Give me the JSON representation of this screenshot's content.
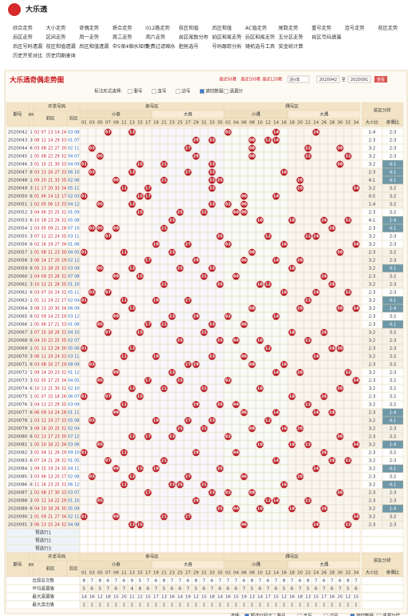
{
  "site_title": "大乐透",
  "nav": [
    [
      "综合走势",
      "大小走势",
      "奇偶走势",
      "质合走势",
      "012路走势",
      "前区和值",
      "后区和值",
      "AC值走势",
      "尾数走势",
      "重号走势",
      "连号走势",
      "前区走势"
    ],
    [
      "后区走势",
      "区间走势",
      "周一走势",
      "周三走势",
      "周六走势",
      "前区尾数分布",
      "前区和尾走势",
      "后区和尾走势",
      "五分区走势",
      "前区号码遗漏"
    ],
    [
      "后区号码遗漏",
      "前区和值遗漏",
      "后区和值遗漏",
      "中5保4缩水矩阵",
      "免费过滤缩水",
      "胆拖选号",
      "号码跟踪分析",
      "随机选号工具",
      "奖金统计算"
    ],
    [
      "历史开奖对比",
      "历史同期查询"
    ]
  ],
  "chart_title": "大乐透奇偶走势图",
  "period_options": [
    "最近50期",
    "最近100期",
    "最近120期"
  ],
  "select_text": "近n年",
  "range_from": "2020042",
  "to_label": "至",
  "range_to": "2020091",
  "button": "查看",
  "mark_label": "标注形式选择:",
  "mark_options": [
    "重号",
    "连号",
    "边号",
    "遮挡数据",
    "遗漏分"
  ],
  "mark_checked": [
    false,
    false,
    false,
    true,
    false
  ],
  "table": {
    "issue_header": "期号",
    "week_header": "星期",
    "draw_header": "开奖号码",
    "front_header": "前区",
    "back_header": "后区",
    "zones": [
      "奇号区",
      "偶号区"
    ],
    "subzones": [
      "小奇",
      "大奇",
      "小偶",
      "大偶"
    ],
    "columns": [
      "01",
      "03",
      "05",
      "07",
      "09",
      "11",
      "13",
      "15",
      "17",
      "19",
      "21",
      "23",
      "25",
      "27",
      "29",
      "31",
      "33",
      "35",
      "02",
      "04",
      "06",
      "08",
      "10",
      "12",
      "14",
      "16",
      "18",
      "20",
      "22",
      "24",
      "26",
      "28",
      "30",
      "32",
      "34"
    ],
    "analysis_header": "前区分析",
    "analysis_cols": [
      "大小比",
      "奇偶比"
    ],
    "rows": [
      {
        "issue": "2020042",
        "week": "1",
        "front": [
          "02",
          "07",
          "13",
          "14",
          "24"
        ],
        "back": [
          "03",
          "08"
        ],
        "big_small": "1:4",
        "odd_even": "2:3"
      },
      {
        "issue": "2020043",
        "week": "3",
        "front": [
          "08",
          "12",
          "14",
          "29",
          "33"
        ],
        "back": [
          "01",
          "07"
        ],
        "big_small": "2:3",
        "odd_even": "2:3"
      },
      {
        "issue": "2020044",
        "week": "6",
        "front": [
          "03",
          "08",
          "22",
          "27",
          "30"
        ],
        "back": [
          "02",
          "11"
        ],
        "big_small": "3:2",
        "odd_even": "2:3"
      },
      {
        "issue": "2020045",
        "week": "1",
        "front": [
          "05",
          "08",
          "22",
          "29",
          "32"
        ],
        "back": [
          "04",
          "07"
        ],
        "big_small": "3:2",
        "odd_even": "2:3"
      },
      {
        "issue": "2020046",
        "week": "3",
        "front": [
          "01",
          "15",
          "21",
          "30",
          "33"
        ],
        "back": [
          "04",
          "09"
        ],
        "big_small": "3:2",
        "odd_even": "4:1"
      },
      {
        "issue": "2020047",
        "week": "6",
        "front": [
          "03",
          "13",
          "16",
          "27",
          "33"
        ],
        "back": [
          "06",
          "10"
        ],
        "big_small": "2:3",
        "odd_even": "4:1"
      },
      {
        "issue": "2020048",
        "week": "1",
        "front": [
          "09",
          "20",
          "21",
          "33",
          "35"
        ],
        "back": [
          "02",
          "06"
        ],
        "big_small": "4:1",
        "odd_even": "4:1"
      },
      {
        "issue": "2020049",
        "week": "3",
        "front": [
          "11",
          "17",
          "20",
          "33",
          "34"
        ],
        "back": [
          "05",
          "11"
        ],
        "big_small": "3:2",
        "odd_even": "3:2"
      },
      {
        "issue": "2020050",
        "week": "6",
        "front": [
          "01",
          "06",
          "14",
          "15",
          "17"
        ],
        "back": [
          "02",
          "03"
        ],
        "big_small": "0:5",
        "odd_even": "3:2"
      },
      {
        "issue": "2020051",
        "week": "1",
        "front": [
          "02",
          "05",
          "06",
          "13",
          "33"
        ],
        "back": [
          "04",
          "12"
        ],
        "big_small": "1:4",
        "odd_even": "3:2"
      },
      {
        "issue": "2020052",
        "week": "3",
        "front": [
          "04",
          "06",
          "15",
          "25",
          "31"
        ],
        "back": [
          "01",
          "09"
        ],
        "big_small": "2:3",
        "odd_even": "3:2"
      },
      {
        "issue": "2020053",
        "week": "6",
        "front": [
          "10",
          "18",
          "23",
          "26",
          "32"
        ],
        "back": [
          "05",
          "08"
        ],
        "big_small": "4:1",
        "odd_even": "1:4"
      },
      {
        "issue": "2020054",
        "week": "1",
        "front": [
          "03",
          "05",
          "09",
          "21",
          "28"
        ],
        "back": [
          "07",
          "10"
        ],
        "big_small": "2:3",
        "odd_even": "4:1"
      },
      {
        "issue": "2020055",
        "week": "3",
        "front": [
          "07",
          "12",
          "22",
          "24",
          "35"
        ],
        "back": [
          "03",
          "11"
        ],
        "big_small": "3:2",
        "odd_even": "2:3"
      },
      {
        "issue": "2020056",
        "week": "6",
        "front": [
          "02",
          "16",
          "19",
          "27",
          "34"
        ],
        "back": [
          "01",
          "06"
        ],
        "big_small": "3:2",
        "odd_even": "2:3"
      },
      {
        "issue": "2020057",
        "week": "1",
        "front": [
          "01",
          "08",
          "11",
          "23",
          "30"
        ],
        "back": [
          "04",
          "05"
        ],
        "big_small": "2:3",
        "odd_even": "3:2"
      },
      {
        "issue": "2020058",
        "week": "3",
        "front": [
          "06",
          "14",
          "17",
          "20",
          "29"
        ],
        "back": [
          "02",
          "12"
        ],
        "big_small": "3:2",
        "odd_even": "2:3"
      },
      {
        "issue": "2020059",
        "week": "6",
        "front": [
          "05",
          "13",
          "18",
          "25",
          "33"
        ],
        "back": [
          "03",
          "09"
        ],
        "big_small": "3:2",
        "odd_even": "4:1"
      },
      {
        "issue": "2020060",
        "week": "1",
        "front": [
          "04",
          "09",
          "15",
          "26",
          "31"
        ],
        "back": [
          "07",
          "08"
        ],
        "big_small": "2:3",
        "odd_even": "3:2"
      },
      {
        "issue": "2020061",
        "week": "3",
        "front": [
          "10",
          "12",
          "21",
          "28",
          "35"
        ],
        "back": [
          "01",
          "10"
        ],
        "big_small": "3:2",
        "odd_even": "2:3"
      },
      {
        "issue": "2020062",
        "week": "6",
        "front": [
          "03",
          "07",
          "16",
          "24",
          "32"
        ],
        "back": [
          "05",
          "11"
        ],
        "big_small": "2:3",
        "odd_even": "2:3"
      },
      {
        "issue": "2020063",
        "week": "1",
        "front": [
          "01",
          "11",
          "19",
          "22",
          "27"
        ],
        "back": [
          "02",
          "04"
        ],
        "big_small": "3:2",
        "odd_even": "4:1"
      },
      {
        "issue": "2020064",
        "week": "3",
        "front": [
          "08",
          "13",
          "20",
          "30",
          "34"
        ],
        "back": [
          "06",
          "09"
        ],
        "big_small": "3:2",
        "odd_even": "1:4"
      },
      {
        "issue": "2020065",
        "week": "6",
        "front": [
          "02",
          "09",
          "14",
          "23",
          "29"
        ],
        "back": [
          "03",
          "12"
        ],
        "big_small": "2:3",
        "odd_even": "3:2"
      },
      {
        "issue": "2020066",
        "week": "1",
        "front": [
          "05",
          "06",
          "17",
          "21",
          "33"
        ],
        "back": [
          "01",
          "08"
        ],
        "big_small": "2:3",
        "odd_even": "4:1"
      },
      {
        "issue": "2020067",
        "week": "3",
        "front": [
          "07",
          "15",
          "18",
          "26",
          "31"
        ],
        "back": [
          "04",
          "10"
        ],
        "big_small": "3:2",
        "odd_even": "3:2"
      },
      {
        "issue": "2020068",
        "week": "6",
        "front": [
          "04",
          "10",
          "22",
          "25",
          "35"
        ],
        "back": [
          "02",
          "07"
        ],
        "big_small": "3:2",
        "odd_even": "2:3"
      },
      {
        "issue": "2020069",
        "week": "1",
        "front": [
          "01",
          "12",
          "13",
          "28",
          "30"
        ],
        "back": [
          "05",
          "06"
        ],
        "big_small": "2:3",
        "odd_even": "2:3"
      },
      {
        "issue": "2020070",
        "week": "3",
        "front": [
          "06",
          "11",
          "19",
          "24",
          "33"
        ],
        "back": [
          "03",
          "11"
        ],
        "big_small": "3:2",
        "odd_even": "3:2"
      },
      {
        "issue": "2020071",
        "week": "6",
        "front": [
          "03",
          "08",
          "16",
          "27",
          "29"
        ],
        "back": [
          "08",
          "09"
        ],
        "big_small": "2:3",
        "odd_even": "3:2"
      },
      {
        "issue": "2020072",
        "week": "1",
        "front": [
          "09",
          "14",
          "20",
          "23",
          "32"
        ],
        "back": [
          "01",
          "12"
        ],
        "big_small": "3:2",
        "odd_even": "2:3"
      },
      {
        "issue": "2020073",
        "week": "3",
        "front": [
          "02",
          "05",
          "17",
          "25",
          "34"
        ],
        "back": [
          "04",
          "05"
        ],
        "big_small": "2:3",
        "odd_even": "3:2"
      },
      {
        "issue": "2020074",
        "week": "6",
        "front": [
          "10",
          "13",
          "21",
          "30",
          "31"
        ],
        "back": [
          "02",
          "10"
        ],
        "big_small": "3:2",
        "odd_even": "3:2"
      },
      {
        "issue": "2020075",
        "week": "1",
        "front": [
          "01",
          "07",
          "15",
          "18",
          "26"
        ],
        "back": [
          "06",
          "07"
        ],
        "big_small": "2:3",
        "odd_even": "3:2"
      },
      {
        "issue": "2020076",
        "week": "3",
        "front": [
          "04",
          "11",
          "22",
          "29",
          "35"
        ],
        "back": [
          "03",
          "09"
        ],
        "big_small": "3:2",
        "odd_even": "3:2"
      },
      {
        "issue": "2020077",
        "week": "6",
        "front": [
          "06",
          "09",
          "14",
          "24",
          "28"
        ],
        "back": [
          "01",
          "11"
        ],
        "big_small": "2:3",
        "odd_even": "1:4"
      },
      {
        "issue": "2020078",
        "week": "1",
        "front": [
          "03",
          "12",
          "19",
          "27",
          "33"
        ],
        "back": [
          "05",
          "08"
        ],
        "big_small": "3:2",
        "odd_even": "4:1"
      },
      {
        "issue": "2020079",
        "week": "3",
        "front": [
          "08",
          "16",
          "20",
          "25",
          "31"
        ],
        "back": [
          "02",
          "04"
        ],
        "big_small": "3:2",
        "odd_even": "2:3"
      },
      {
        "issue": "2020080",
        "week": "6",
        "front": [
          "02",
          "13",
          "17",
          "23",
          "30"
        ],
        "back": [
          "07",
          "12"
        ],
        "big_small": "2:3",
        "odd_even": "3:2"
      },
      {
        "issue": "2020081",
        "week": "1",
        "front": [
          "05",
          "10",
          "18",
          "22",
          "34"
        ],
        "back": [
          "03",
          "06"
        ],
        "big_small": "3:2",
        "odd_even": "1:4"
      },
      {
        "issue": "2020082",
        "week": "3",
        "front": [
          "01",
          "04",
          "11",
          "26",
          "29"
        ],
        "back": [
          "09",
          "10"
        ],
        "big_small": "2:3",
        "odd_even": "3:2"
      },
      {
        "issue": "2020083",
        "week": "6",
        "front": [
          "07",
          "14",
          "21",
          "28",
          "32"
        ],
        "back": [
          "01",
          "05"
        ],
        "big_small": "3:2",
        "odd_even": "2:3"
      },
      {
        "issue": "2020084",
        "week": "1",
        "front": [
          "09",
          "15",
          "19",
          "24",
          "35"
        ],
        "back": [
          "04",
          "11"
        ],
        "big_small": "3:2",
        "odd_even": "4:1"
      },
      {
        "issue": "2020085",
        "week": "3",
        "front": [
          "03",
          "06",
          "13",
          "20",
          "27"
        ],
        "back": [
          "02",
          "08"
        ],
        "big_small": "2:3",
        "odd_even": "3:2"
      },
      {
        "issue": "2020086",
        "week": "6",
        "front": [
          "11",
          "16",
          "23",
          "25",
          "31"
        ],
        "back": [
          "06",
          "12"
        ],
        "big_small": "3:2",
        "odd_even": "4:1"
      },
      {
        "issue": "2020087",
        "week": "1",
        "front": [
          "02",
          "08",
          "17",
          "30",
          "33"
        ],
        "back": [
          "03",
          "07"
        ],
        "big_small": "2:3",
        "odd_even": "2:3"
      },
      {
        "issue": "2020088",
        "week": "3",
        "front": [
          "05",
          "12",
          "14",
          "22",
          "29"
        ],
        "back": [
          "01",
          "10"
        ],
        "big_small": "2:3",
        "odd_even": "2:3"
      },
      {
        "issue": "2020089",
        "week": "6",
        "front": [
          "04",
          "10",
          "18",
          "26",
          "35"
        ],
        "back": [
          "05",
          "09"
        ],
        "big_small": "3:2",
        "odd_even": "1:4"
      },
      {
        "issue": "2020090",
        "week": "1",
        "front": [
          "01",
          "09",
          "21",
          "27",
          "34"
        ],
        "back": [
          "02",
          "11"
        ],
        "big_small": "3:2",
        "odd_even": "3:2"
      },
      {
        "issue": "2020091",
        "week": "3",
        "front": [
          "06",
          "13",
          "15",
          "24",
          "32"
        ],
        "back": [
          "04",
          "08"
        ],
        "big_small": "2:3",
        "odd_even": "2:3"
      }
    ],
    "forecast_labels": [
      "预选行1",
      "预选行2",
      "预选行3"
    ],
    "stats": [
      {
        "label": "出现总次数",
        "values": [
          8,
          7,
          8,
          6,
          7,
          6,
          9,
          5,
          7,
          6,
          8,
          7,
          7,
          6,
          8,
          7,
          6,
          7,
          7,
          7,
          6,
          8,
          7,
          6,
          7,
          8,
          7,
          6,
          8,
          7,
          6,
          7,
          6,
          8,
          7
        ]
      },
      {
        "label": "平均遗漏值",
        "values": [
          5,
          6,
          5,
          7,
          6,
          7,
          4,
          8,
          6,
          7,
          5,
          6,
          6,
          7,
          5,
          6,
          7,
          6,
          6,
          6,
          7,
          5,
          6,
          7,
          6,
          5,
          6,
          7,
          5,
          6,
          7,
          6,
          7,
          5,
          6
        ]
      },
      {
        "label": "最大遗漏值",
        "values": [
          14,
          16,
          12,
          18,
          15,
          20,
          11,
          22,
          15,
          17,
          13,
          16,
          14,
          19,
          12,
          15,
          18,
          14,
          16,
          15,
          19,
          13,
          14,
          17,
          15,
          12,
          16,
          18,
          13,
          15,
          17,
          16,
          20,
          12,
          15
        ]
      },
      {
        "label": "最大连出值",
        "values": [
          2,
          1,
          2,
          1,
          2,
          1,
          2,
          1,
          1,
          2,
          2,
          1,
          2,
          1,
          2,
          1,
          1,
          2,
          1,
          2,
          1,
          2,
          2,
          1,
          1,
          2,
          1,
          1,
          2,
          1,
          1,
          2,
          1,
          2,
          1
        ]
      }
    ]
  },
  "footer_label": "选择:",
  "footer_options": [
    "预选行提示",
    "重号",
    "连号",
    "边号",
    "遮挡数据",
    "遗漏分层"
  ],
  "footer_checked": [
    true,
    false,
    false,
    false,
    true,
    false
  ]
}
